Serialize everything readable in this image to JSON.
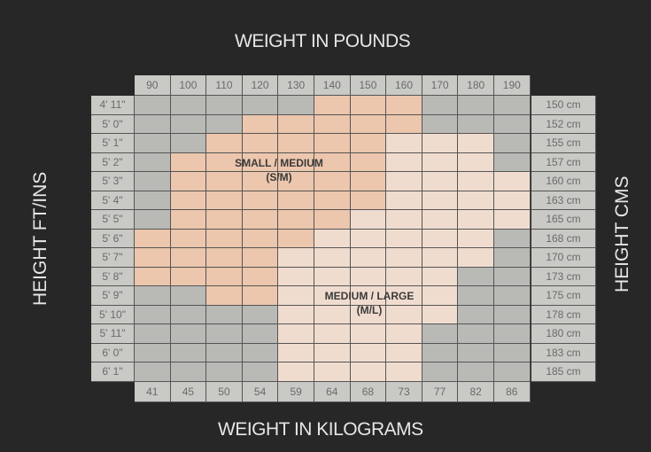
{
  "chart_data": {
    "type": "heatmap",
    "title_top": "WEIGHT IN POUNDS",
    "title_bottom": "WEIGHT IN KILOGRAMS",
    "ylabel_left": "HEIGHT FT/INS",
    "ylabel_right": "HEIGHT CMS",
    "weights_lbs": [
      "90",
      "100",
      "110",
      "120",
      "130",
      "140",
      "150",
      "160",
      "170",
      "180",
      "190"
    ],
    "weights_kg": [
      "41",
      "45",
      "50",
      "54",
      "59",
      "64",
      "68",
      "73",
      "77",
      "82",
      "86"
    ],
    "heights_ft": [
      "4' 11\"",
      "5' 0\"",
      "5' 1\"",
      "5' 2\"",
      "5' 3\"",
      "5' 4\"",
      "5' 5\"",
      "5' 6\"",
      "5' 7\"",
      "5' 8\"",
      "5' 9\"",
      "5' 10\"",
      "5' 11\"",
      "6' 0\"",
      "6' 1\""
    ],
    "heights_cm": [
      "150 cm",
      "152 cm",
      "155 cm",
      "157 cm",
      "160 cm",
      "163 cm",
      "165 cm",
      "168 cm",
      "170 cm",
      "173 cm",
      "175 cm",
      "178 cm",
      "180 cm",
      "183 cm",
      "185 cm"
    ],
    "sizes": {
      "S": {
        "label": "SMALL / MEDIUM",
        "abbr": "(S/M)",
        "color": "#ecc6ad"
      },
      "M": {
        "label": "MEDIUM / LARGE",
        "abbr": "(M/L)",
        "color": "#f0dccf"
      },
      "G": {
        "label": "",
        "color": "#b9bab6"
      }
    },
    "grid": [
      "GGGGGSSSGGG",
      "GGGSSSSSGGG",
      "GGSSSSSMMMG",
      "GSSSSSSMMMG",
      "GSSSSSSMMMM",
      "GSSSSSSMMMM",
      "GSSSSSMMMMM",
      "SSSSSMMMMMG",
      "SSSSMMMMMMG",
      "SSSSMMMMMGG",
      "GGSSMMMMMGG",
      "GGGGMMMMMGG",
      "GGGGMMMMGGG",
      "GGGGMMMMGGG",
      "GGGGMMMMGGG"
    ],
    "header_color": "#c9c9c5",
    "background": "#272727"
  }
}
